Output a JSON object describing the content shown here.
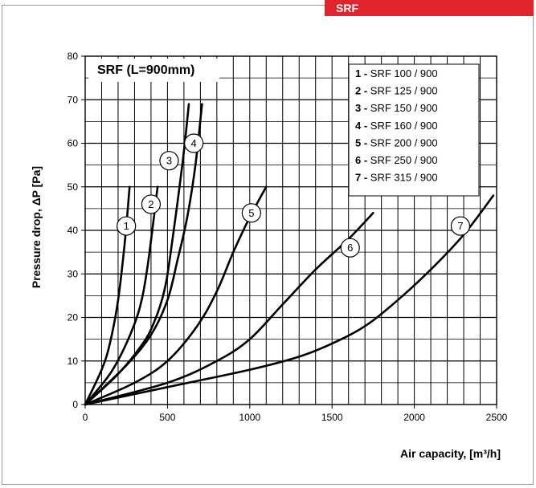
{
  "header": {
    "tag": "SRF"
  },
  "chart_data": {
    "type": "line",
    "title": "SRF (L=900mm)",
    "xlabel": "Air capacity, [m³/h]",
    "ylabel": "Pressure drop, ΔP [Pa]",
    "xlim": [
      0,
      2500
    ],
    "ylim": [
      0,
      80
    ],
    "xticks": [
      0,
      500,
      1000,
      1500,
      2000,
      2500
    ],
    "yticks": [
      0,
      10,
      20,
      30,
      40,
      50,
      60,
      70,
      80
    ],
    "grid": true,
    "legend_placement": "top-right",
    "series": [
      {
        "id": "1",
        "name": "SRF  100 / 900",
        "x": [
          0,
          100,
          150,
          200,
          240,
          270
        ],
        "y": [
          0,
          8,
          14,
          24,
          37,
          50
        ]
      },
      {
        "id": "2",
        "name": "SRF  125 / 900",
        "x": [
          0,
          150,
          250,
          330,
          380,
          440
        ],
        "y": [
          0,
          7,
          14,
          22,
          32,
          50
        ]
      },
      {
        "id": "3",
        "name": "SRF  150 / 900",
        "x": [
          0,
          200,
          350,
          420,
          480,
          520,
          590,
          630
        ],
        "y": [
          0,
          7,
          14,
          19,
          26,
          35,
          55,
          69
        ]
      },
      {
        "id": "4",
        "name": "SRF  160 / 900",
        "x": [
          0,
          250,
          400,
          500,
          560,
          620,
          670,
          710
        ],
        "y": [
          0,
          9,
          16,
          24,
          33,
          43,
          55,
          69
        ]
      },
      {
        "id": "5",
        "name": "SRF  200 / 900",
        "x": [
          0,
          300,
          500,
          680,
          800,
          900,
          1000,
          1100
        ],
        "y": [
          0,
          5,
          10,
          18,
          26,
          35,
          43,
          50
        ]
      },
      {
        "id": "6",
        "name": "SRF  250 / 900",
        "x": [
          0,
          500,
          800,
          1000,
          1200,
          1400,
          1600,
          1750
        ],
        "y": [
          0,
          5,
          10,
          15,
          23,
          31,
          38,
          44
        ]
      },
      {
        "id": "7",
        "name": "SRF  315 / 900",
        "x": [
          0,
          500,
          1000,
          1300,
          1500,
          1700,
          1900,
          2100,
          2300,
          2480
        ],
        "y": [
          0,
          4,
          8,
          11,
          14,
          18,
          24,
          31,
          39,
          48
        ]
      }
    ]
  },
  "curve_labels": [
    "1",
    "2",
    "3",
    "4",
    "5",
    "6",
    "7"
  ],
  "legend": [
    {
      "num": "1",
      "text": "SRF  100 / 900"
    },
    {
      "num": "2",
      "text": "SRF  125 / 900"
    },
    {
      "num": "3",
      "text": "SRF  150 / 900"
    },
    {
      "num": "4",
      "text": "SRF  160 / 900"
    },
    {
      "num": "5",
      "text": "SRF  200 / 900"
    },
    {
      "num": "6",
      "text": "SRF  250 / 900"
    },
    {
      "num": "7",
      "text": "SRF  315 / 900"
    }
  ],
  "colors": {
    "accent": "#e3232b",
    "curve": "#000000",
    "grid": "#000000"
  }
}
